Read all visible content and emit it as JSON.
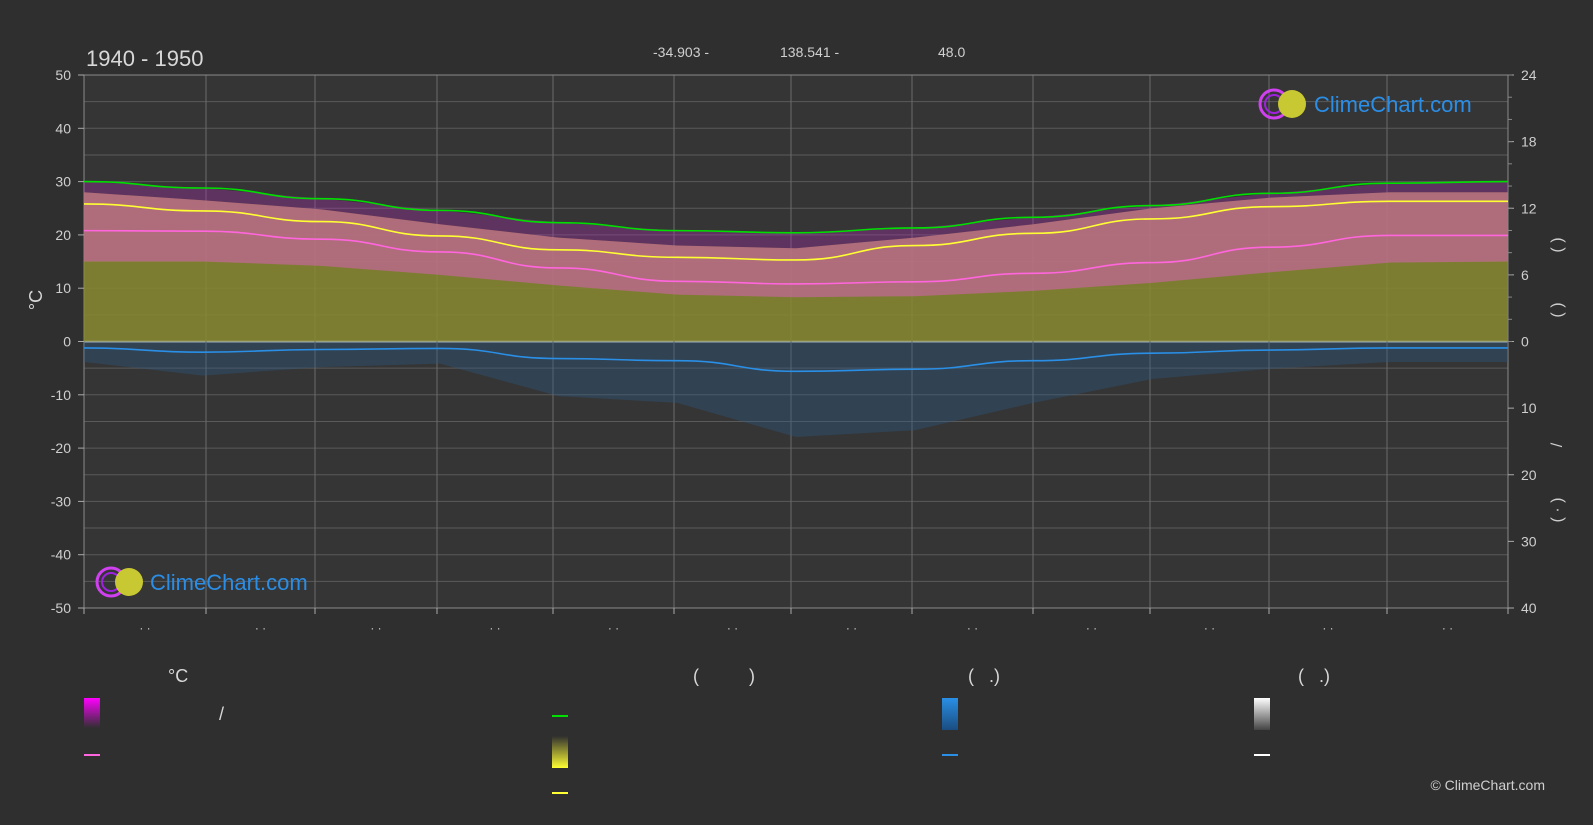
{
  "header": {
    "period": "1940 - 1950",
    "latitude": "-34.903 -",
    "longitude": "138.541 -",
    "elevation": "48.0"
  },
  "watermark": {
    "text": "ClimeChart.com"
  },
  "copyright": "© ClimeChart.com",
  "colors": {
    "background": "#2f2f2f",
    "sunshine_line": "#00e000",
    "max_temp_line": "#ffff33",
    "mean_temp_line": "#ff66dd",
    "precip_line": "#2a8fe6",
    "temp_fill": "#9c9c32",
    "temp_band": "#d95fb8",
    "precip_fill": "#2a5d8a",
    "brand": "#2b8ee6"
  },
  "legend": {
    "headers": [
      "°C",
      "(          )",
      "(   .)",
      "(   .)"
    ],
    "slash": "/"
  },
  "chart_data": {
    "type": "area",
    "left_axis": {
      "label": "°C",
      "ylim": [
        -50,
        50
      ],
      "ticks": [
        "50",
        "40",
        "30",
        "20",
        "10",
        "0",
        "-10",
        "-20",
        "-30",
        "-40",
        "-50"
      ]
    },
    "right_axis_top": {
      "ylim": [
        0,
        24
      ],
      "ticks": [
        "24",
        "18",
        "12",
        "6",
        "0"
      ]
    },
    "right_axis_bottom": {
      "ylim": [
        0,
        40
      ],
      "ticks": [
        "0",
        "10",
        "20",
        "30",
        "40"
      ]
    },
    "right_axis_labels": [
      "(    )",
      "(    )",
      "/",
      "(  ·  )"
    ],
    "x_tick_labels": [
      "· ·",
      "· ·",
      "· ·",
      "· ·",
      "· ·",
      "· ·",
      "· ·",
      "· ·",
      "· ·",
      "· ·",
      "· ·",
      "· ·"
    ],
    "grid": true,
    "series": [
      {
        "key": "sunshine",
        "axis": "temp",
        "values": [
          30.0,
          28.8,
          26.8,
          24.6,
          22.3,
          20.8,
          20.4,
          21.3,
          23.3,
          25.5,
          27.8,
          29.7,
          30.0
        ]
      },
      {
        "key": "max_temp",
        "axis": "temp",
        "values": [
          25.8,
          24.5,
          22.5,
          19.8,
          17.2,
          15.8,
          15.3,
          18.0,
          20.3,
          23.0,
          25.3,
          26.3,
          26.3
        ]
      },
      {
        "key": "mean_temp",
        "axis": "temp",
        "values": [
          20.8,
          20.7,
          19.2,
          16.8,
          13.8,
          11.3,
          10.8,
          11.2,
          12.8,
          14.8,
          17.7,
          19.9,
          19.9
        ]
      },
      {
        "key": "precip",
        "axis": "temp",
        "values": [
          -1.2,
          -2.0,
          -1.5,
          -1.3,
          -3.2,
          -3.6,
          -5.6,
          -5.2,
          -3.6,
          -2.2,
          -1.6,
          -1.2,
          -1.2
        ]
      },
      {
        "key": "max_band",
        "axis": "temp",
        "values": [
          28.0,
          26.5,
          24.8,
          22.0,
          19.5,
          18.0,
          17.5,
          19.5,
          22.0,
          25.0,
          27.0,
          28.0,
          28.0
        ]
      },
      {
        "key": "min_band",
        "axis": "temp",
        "values": [
          15.0,
          15.0,
          14.2,
          12.5,
          10.5,
          8.8,
          8.3,
          8.5,
          9.5,
          11.0,
          13.0,
          14.8,
          15.0
        ]
      }
    ]
  }
}
